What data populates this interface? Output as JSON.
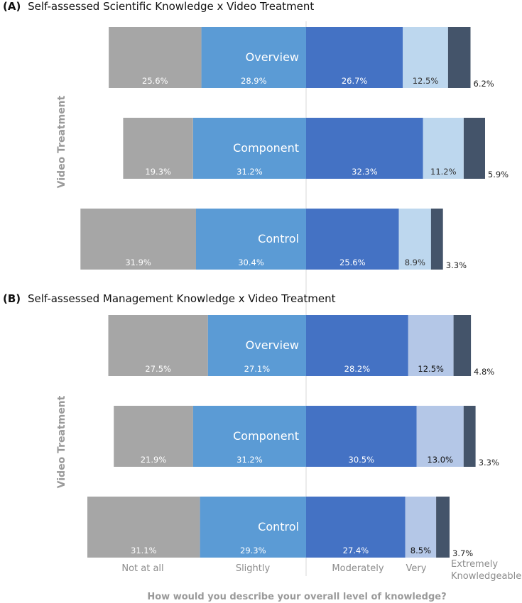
{
  "colors": {
    "not_at_all": "#a6a6a6",
    "slightly": "#5b9bd5",
    "moderately": "#4472c4",
    "very_a": "#bdd7ee",
    "very_b": "#b4c7e7",
    "extremely": "#44546a"
  },
  "chart_data": [
    {
      "type": "bar",
      "orientation": "horizontal",
      "stacked": "diverging",
      "letter": "(A)",
      "title": "Self-assessed Scientific Knowledge x Video Treatment",
      "ylabel": "Video Treatment",
      "categories": [
        "Overview",
        "Component",
        "Control"
      ],
      "series": [
        {
          "name": "Not at all",
          "values": [
            25.6,
            19.3,
            31.9
          ]
        },
        {
          "name": "Slightly",
          "values": [
            28.9,
            31.2,
            30.4
          ]
        },
        {
          "name": "Moderately",
          "values": [
            26.7,
            32.3,
            25.6
          ]
        },
        {
          "name": "Very",
          "values": [
            12.5,
            11.2,
            8.9
          ]
        },
        {
          "name": "Extremely Knowledgeable",
          "values": [
            6.2,
            5.9,
            3.3
          ]
        }
      ],
      "value_labels": [
        [
          "25.6%",
          "28.9%",
          "26.7%",
          "12.5%",
          "6.2%"
        ],
        [
          "19.3%",
          "31.2%",
          "32.3%",
          "11.2%",
          "5.9%"
        ],
        [
          "31.9%",
          "30.4%",
          "25.6%",
          "8.9%",
          "3.3%"
        ]
      ]
    },
    {
      "type": "bar",
      "orientation": "horizontal",
      "stacked": "diverging",
      "letter": "(B)",
      "title": "Self-assessed Management Knowledge x Video Treatment",
      "ylabel": "Video Treatment",
      "categories": [
        "Overview",
        "Component",
        "Control"
      ],
      "series": [
        {
          "name": "Not at all",
          "values": [
            27.5,
            21.9,
            31.1
          ]
        },
        {
          "name": "Slightly",
          "values": [
            27.1,
            31.2,
            29.3
          ]
        },
        {
          "name": "Moderately",
          "values": [
            28.2,
            30.5,
            27.4
          ]
        },
        {
          "name": "Very",
          "values": [
            12.5,
            13.0,
            8.5
          ]
        },
        {
          "name": "Extremely Knowledgeable",
          "values": [
            4.8,
            3.3,
            3.7
          ]
        }
      ],
      "value_labels": [
        [
          "27.5%",
          "27.1%",
          "28.2%",
          "12.5%",
          "4.8%"
        ],
        [
          "21.9%",
          "31.2%",
          "30.5%",
          "13.0%",
          "3.3%"
        ],
        [
          "31.1%",
          "29.3%",
          "27.4%",
          "8.5%",
          "3.7%"
        ]
      ]
    }
  ],
  "axis": {
    "levels": [
      "Not at all",
      "Slightly",
      "Moderately",
      "Very",
      "Extremely",
      "Knowledgeable"
    ],
    "xlabel": "How would you describe your overall level of knowledge?"
  }
}
